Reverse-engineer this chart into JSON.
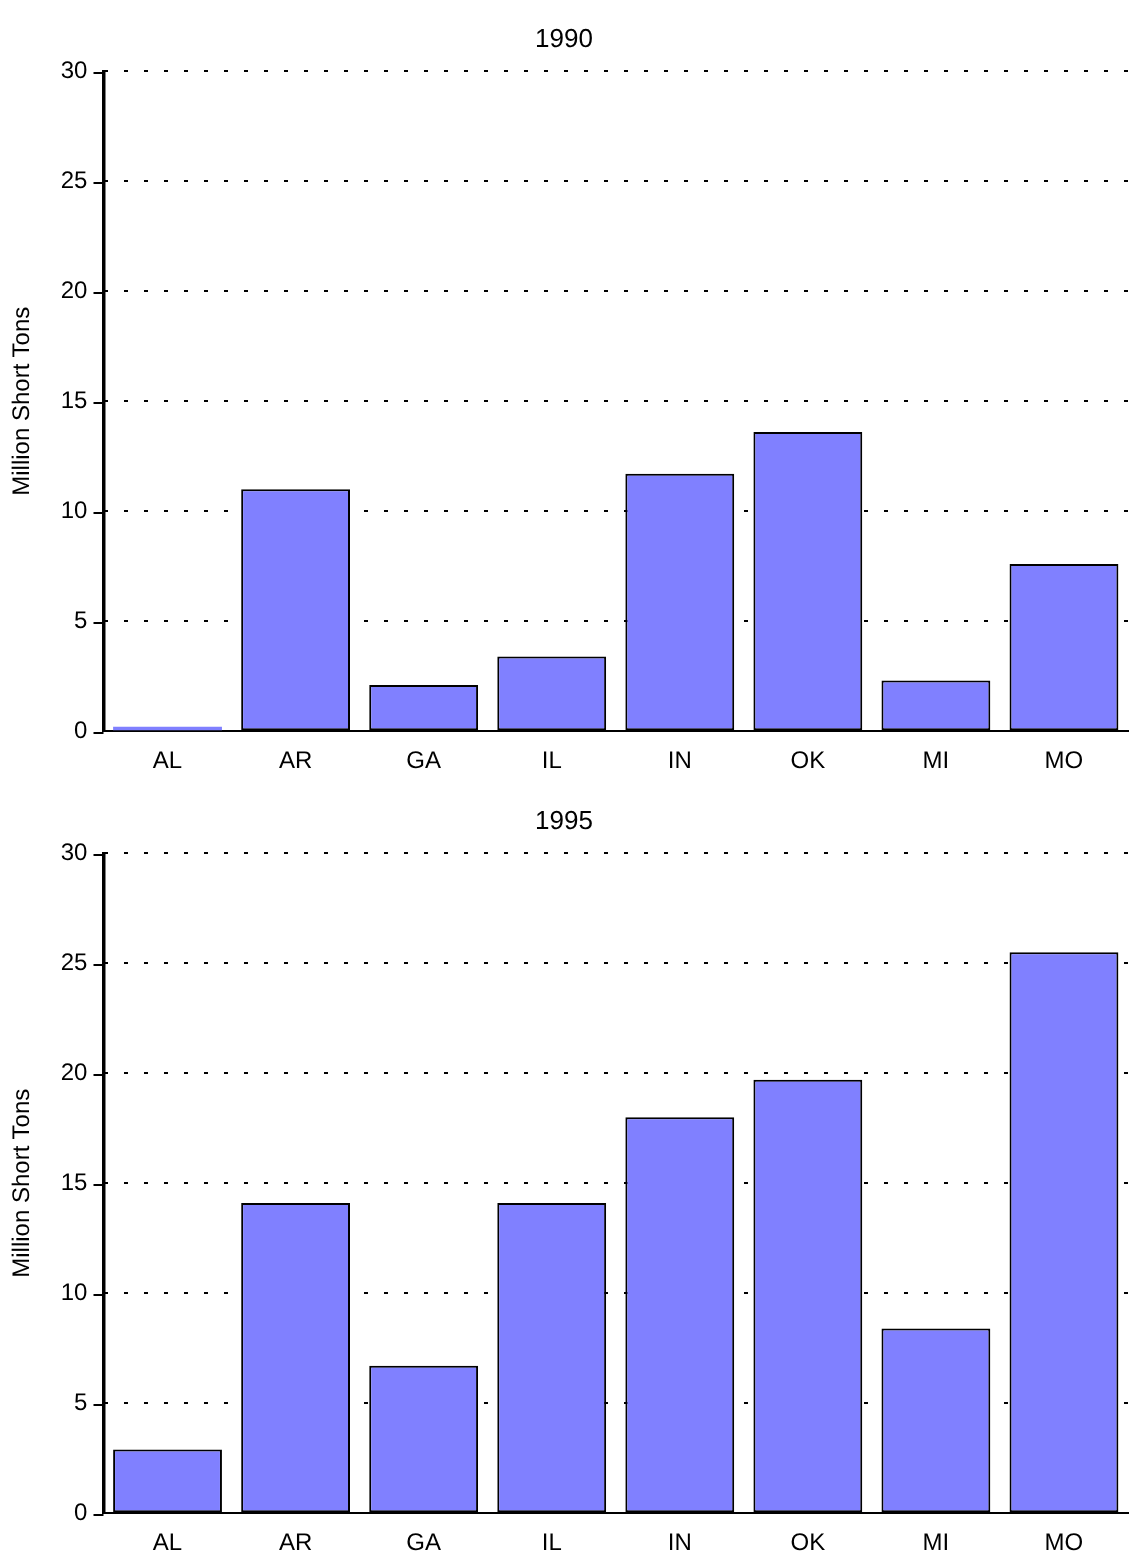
{
  "chart_data": [
    {
      "type": "bar",
      "title": "1990",
      "ylabel": "Million Short Tons",
      "categories": [
        "AL",
        "AR",
        "GA",
        "IL",
        "IN",
        "OK",
        "MI",
        "MO"
      ],
      "values": [
        0.2,
        11.0,
        2.1,
        3.4,
        11.7,
        13.6,
        2.3,
        7.6
      ],
      "color": "#8080ff",
      "ylim": [
        0,
        30
      ],
      "yticks": [
        0,
        5,
        10,
        15,
        20,
        25,
        30
      ],
      "grid": "y"
    },
    {
      "type": "bar",
      "title": "1995",
      "ylabel": "Million Short Tons",
      "categories": [
        "AL",
        "AR",
        "GA",
        "IL",
        "IN",
        "OK",
        "MI",
        "MO"
      ],
      "values": [
        2.9,
        14.1,
        6.7,
        14.1,
        18.0,
        19.7,
        8.4,
        25.5
      ],
      "color": "#8080ff",
      "ylim": [
        0,
        30
      ],
      "yticks": [
        0,
        5,
        10,
        15,
        20,
        25,
        30
      ],
      "grid": "y"
    }
  ]
}
